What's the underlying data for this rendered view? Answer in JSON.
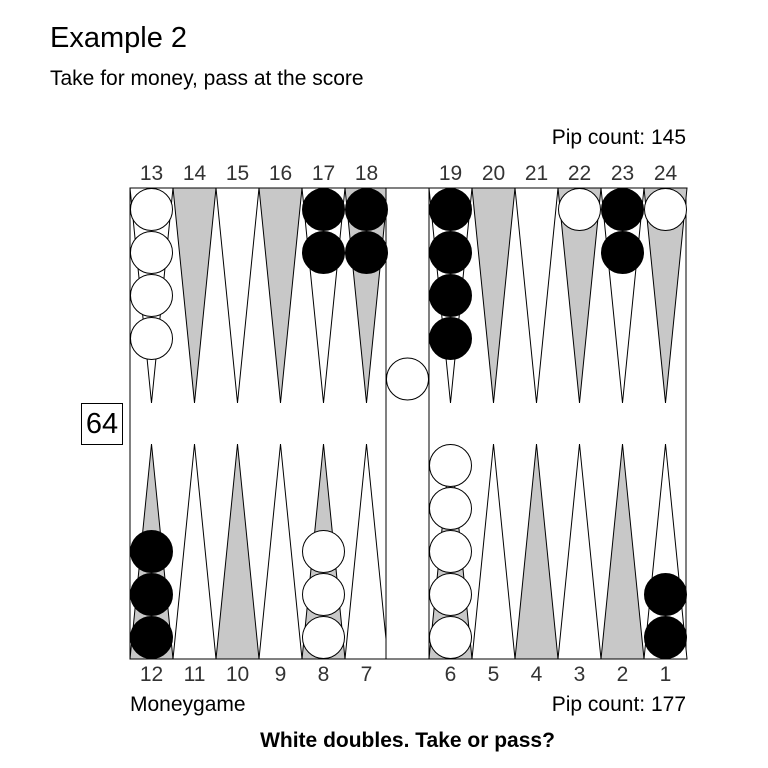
{
  "header": {
    "title": "Example 2",
    "subtitle": "Take for money, pass at the score"
  },
  "pip_counts": {
    "top": "Pip count: 145",
    "bottom": "Pip count: 177"
  },
  "footer": {
    "match_type": "Moneygame",
    "question": "White doubles. Take or pass?"
  },
  "cube": {
    "value": "64"
  },
  "colors": {
    "shaded_point": "#c8c8c8",
    "white_checker": "#ffffff",
    "black_checker": "#000000"
  },
  "point_labels": {
    "top": [
      "13",
      "14",
      "15",
      "16",
      "17",
      "18",
      "19",
      "20",
      "21",
      "22",
      "23",
      "24"
    ],
    "bottom": [
      "12",
      "11",
      "10",
      "9",
      "8",
      "7",
      "6",
      "5",
      "4",
      "3",
      "2",
      "1"
    ]
  },
  "position": {
    "points": [
      {
        "point": 13,
        "color": "white",
        "count": 4
      },
      {
        "point": 17,
        "color": "black",
        "count": 2
      },
      {
        "point": 18,
        "color": "black",
        "count": 2
      },
      {
        "point": 19,
        "color": "black",
        "count": 4
      },
      {
        "point": 22,
        "color": "white",
        "count": 1
      },
      {
        "point": 23,
        "color": "black",
        "count": 2
      },
      {
        "point": 24,
        "color": "white",
        "count": 1
      },
      {
        "point": 12,
        "color": "black",
        "count": 3
      },
      {
        "point": 8,
        "color": "white",
        "count": 3
      },
      {
        "point": 6,
        "color": "white",
        "count": 5
      },
      {
        "point": 1,
        "color": "black",
        "count": 2
      }
    ],
    "bar": [
      {
        "color": "white",
        "count": 1
      }
    ]
  }
}
